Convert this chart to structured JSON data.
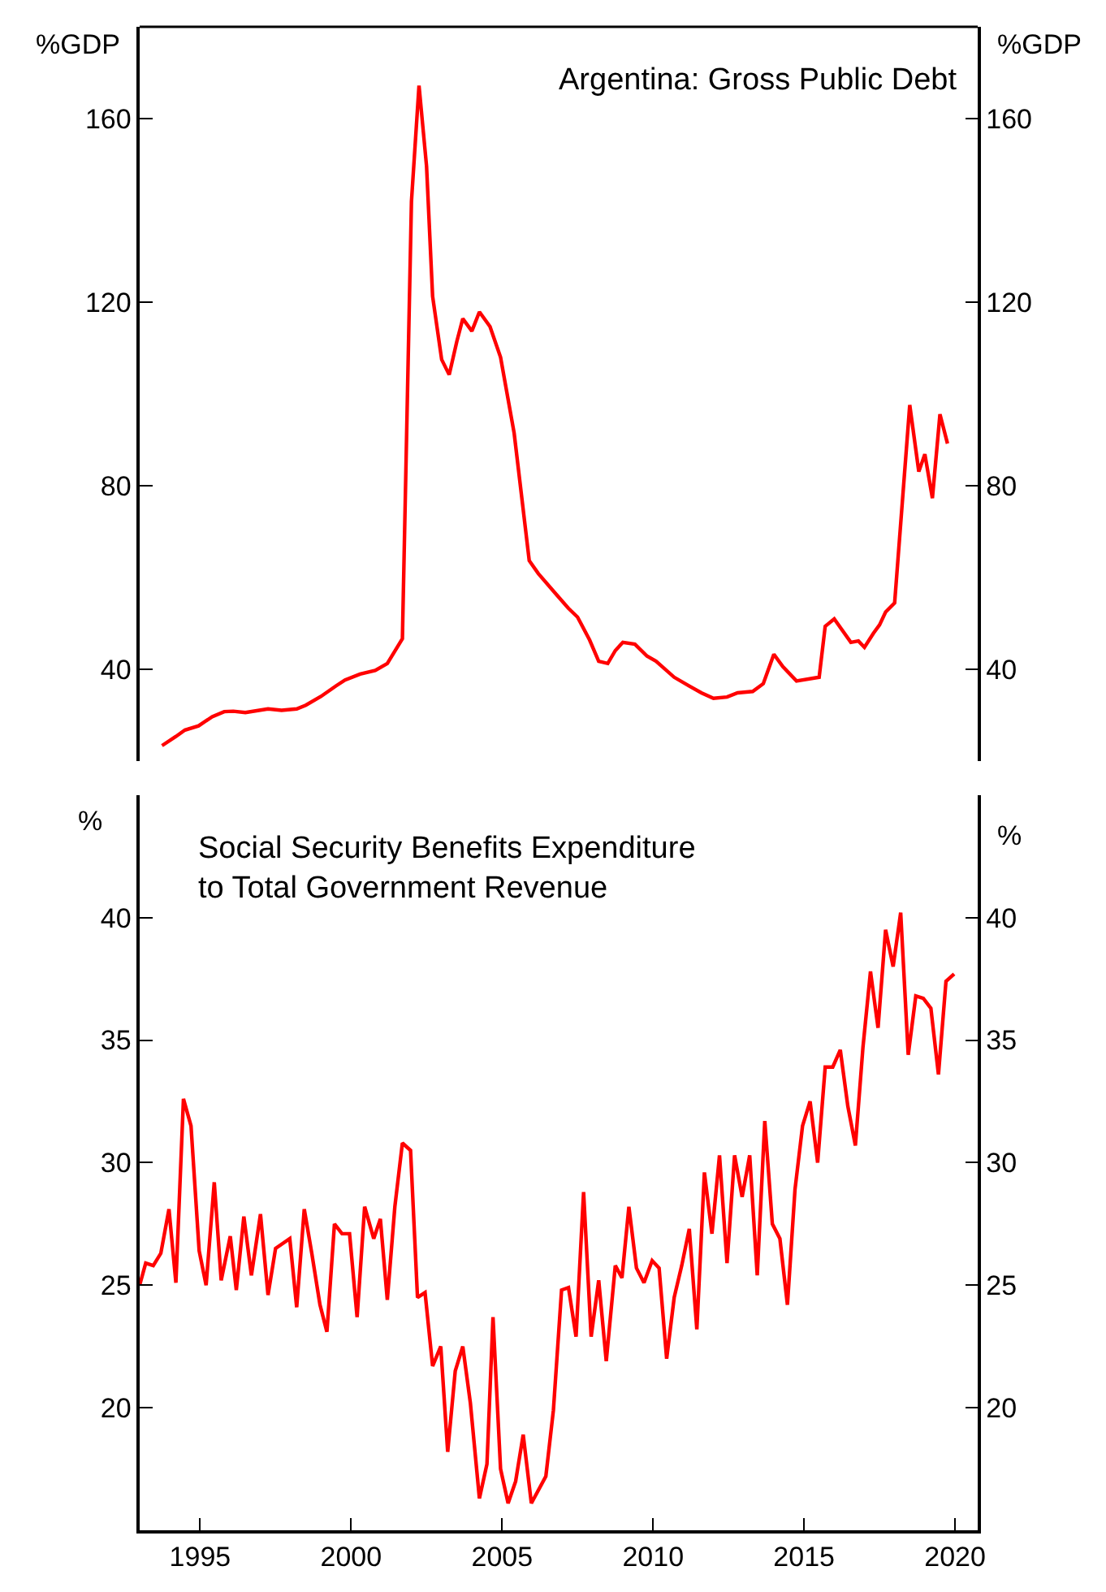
{
  "chart_data": [
    {
      "type": "line",
      "title": "Argentina: Gross Public Debt",
      "ylabel": "%GDP",
      "y2label": "%GDP",
      "xlim": [
        1993,
        2020.75
      ],
      "ylim": [
        20,
        180
      ],
      "yticks": [
        40,
        80,
        120,
        160
      ],
      "y2lim": [
        20,
        180
      ],
      "y2ticks": [
        40,
        80,
        120,
        160
      ],
      "tick_labels": "y",
      "grid": false,
      "legend": false,
      "x": [
        1993.74,
        1994.2,
        1994.5,
        1994.95,
        1995.4,
        1995.8,
        1996.1,
        1996.5,
        1997.25,
        1997.7,
        1998.2,
        1998.5,
        1999.0,
        1999.5,
        1999.8,
        2000.3,
        2000.8,
        2001.2,
        2001.7,
        2002.0,
        2002.25,
        2002.5,
        2002.7,
        2003.0,
        2003.25,
        2003.5,
        2003.7,
        2004.0,
        2004.25,
        2004.6,
        2004.95,
        2005.4,
        2005.9,
        2006.2,
        2006.8,
        2007.2,
        2007.5,
        2007.9,
        2008.2,
        2008.5,
        2008.75,
        2009.0,
        2009.4,
        2009.8,
        2010.1,
        2010.7,
        2011.2,
        2011.6,
        2012.0,
        2012.45,
        2012.8,
        2013.3,
        2013.65,
        2014.0,
        2014.3,
        2014.75,
        2015.5,
        2015.7,
        2016.0,
        2016.55,
        2016.8,
        2017.0,
        2017.3,
        2017.5,
        2017.7,
        2018.0,
        2018.5,
        2018.8,
        2019.0,
        2019.25,
        2019.5,
        2019.75
      ],
      "series": [
        {
          "color": "#ff0000",
          "values": [
            23.4,
            25.4,
            26.8,
            27.7,
            29.7,
            30.8,
            30.9,
            30.6,
            31.4,
            31.1,
            31.4,
            32.2,
            34.1,
            36.4,
            37.7,
            39.0,
            39.8,
            41.3,
            46.7,
            142,
            167.2,
            149.6,
            121.3,
            107.5,
            104.2,
            111.4,
            116.4,
            113.7,
            117.9,
            114.7,
            108.0,
            91.5,
            63.7,
            60.9,
            56.3,
            53.3,
            51.4,
            46.4,
            41.8,
            41.3,
            44.1,
            45.9,
            45.5,
            42.9,
            41.8,
            38.3,
            36.4,
            34.9,
            33.7,
            34.0,
            34.9,
            35.2,
            36.9,
            43.3,
            40.6,
            37.5,
            38.3,
            49.4,
            51.0,
            45.9,
            46.2,
            44.8,
            47.9,
            49.7,
            52.5,
            54.5,
            97.6,
            83.1,
            86.9,
            77.3,
            95.6,
            89.2
          ]
        }
      ]
    },
    {
      "type": "line",
      "title": "Social Security Benefits Expenditure\nto Total Government Revenue",
      "ylabel": "%",
      "y2label": "%",
      "xlim": [
        1993,
        2020.75
      ],
      "xticks": [
        1995,
        2000,
        2005,
        2010,
        2015,
        2020
      ],
      "ylim": [
        15,
        45
      ],
      "yticks": [
        20,
        25,
        30,
        35,
        40
      ],
      "y2lim": [
        15,
        45
      ],
      "y2ticks": [
        20,
        25,
        30,
        35,
        40
      ],
      "grid": false,
      "legend": false,
      "x": [
        1993.0,
        1993.2,
        1993.45,
        1993.7,
        1993.97,
        1994.2,
        1994.45,
        1994.7,
        1994.97,
        1995.2,
        1995.47,
        1995.7,
        1996.0,
        1996.2,
        1996.45,
        1996.7,
        1997.0,
        1997.25,
        1997.5,
        1997.97,
        1998.2,
        1998.45,
        1998.7,
        1998.97,
        1999.2,
        1999.45,
        1999.7,
        1999.95,
        2000.2,
        2000.45,
        2000.75,
        2000.97,
        2001.2,
        2001.45,
        2001.7,
        2001.97,
        2002.2,
        2002.45,
        2002.7,
        2002.97,
        2003.2,
        2003.45,
        2003.7,
        2003.95,
        2004.25,
        2004.5,
        2004.7,
        2004.95,
        2005.2,
        2005.45,
        2005.7,
        2005.97,
        2006.45,
        2006.7,
        2006.97,
        2007.2,
        2007.45,
        2007.7,
        2007.95,
        2008.2,
        2008.45,
        2008.75,
        2008.97,
        2009.2,
        2009.45,
        2009.7,
        2009.97,
        2010.2,
        2010.45,
        2010.7,
        2010.95,
        2011.2,
        2011.45,
        2011.7,
        2011.95,
        2012.2,
        2012.45,
        2012.7,
        2012.95,
        2013.2,
        2013.45,
        2013.7,
        2013.95,
        2014.2,
        2014.45,
        2014.7,
        2014.95,
        2015.2,
        2015.45,
        2015.7,
        2015.95,
        2016.2,
        2016.45,
        2016.7,
        2016.95,
        2017.2,
        2017.45,
        2017.7,
        2017.95,
        2018.2,
        2018.45,
        2018.7,
        2018.95,
        2019.2,
        2019.45,
        2019.7,
        2019.97
      ],
      "series": [
        {
          "color": "#ff0000",
          "values": [
            25.0,
            25.9,
            25.8,
            26.3,
            28.1,
            25.1,
            32.6,
            31.5,
            26.4,
            25.0,
            29.2,
            25.2,
            27.0,
            24.8,
            27.8,
            25.4,
            27.9,
            24.6,
            26.5,
            26.9,
            24.1,
            28.1,
            26.3,
            24.2,
            23.1,
            27.5,
            27.1,
            27.1,
            23.7,
            28.2,
            26.9,
            27.7,
            24.4,
            28.2,
            30.8,
            30.5,
            24.5,
            24.7,
            21.7,
            22.5,
            18.2,
            21.5,
            22.5,
            20.2,
            16.3,
            17.7,
            23.7,
            17.5,
            16.1,
            17.0,
            18.9,
            16.1,
            17.2,
            19.9,
            24.8,
            24.9,
            22.9,
            28.8,
            22.9,
            25.2,
            21.9,
            25.8,
            25.3,
            28.2,
            25.7,
            25.1,
            26.0,
            25.7,
            22.0,
            24.5,
            25.8,
            27.3,
            23.2,
            29.6,
            27.1,
            30.3,
            25.9,
            30.3,
            28.6,
            30.3,
            25.4,
            31.7,
            27.5,
            26.9,
            24.2,
            28.9,
            31.5,
            32.5,
            30.0,
            33.9,
            33.9,
            34.6,
            32.3,
            30.7,
            34.7,
            37.8,
            35.5,
            39.5,
            38.0,
            40.2,
            34.4,
            36.8,
            36.7,
            36.3,
            33.6,
            37.4,
            37.7
          ]
        }
      ]
    }
  ]
}
